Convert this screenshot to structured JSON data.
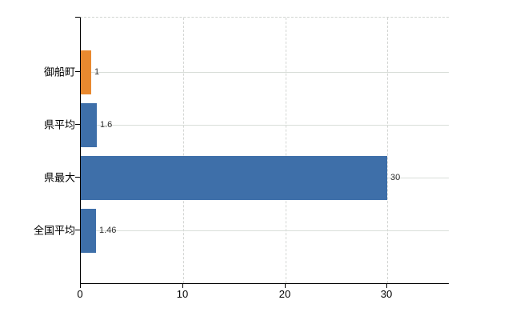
{
  "chart_data": {
    "type": "bar",
    "orientation": "horizontal",
    "title": "",
    "xlabel": "",
    "ylabel": "",
    "categories": [
      "御船町",
      "県平均",
      "県最大",
      "全国平均"
    ],
    "values": [
      1,
      1.6,
      30,
      1.46
    ],
    "data_labels": [
      "1",
      "1.6",
      "30",
      "1.46"
    ],
    "bar_colors": [
      "#e9892f",
      "#3e6fa9",
      "#3e6fa9",
      "#3e6fa9"
    ],
    "x_ticks": [
      0,
      10,
      20,
      30
    ],
    "x_tick_labels": [
      "0",
      "10",
      "20",
      "30"
    ],
    "xlim": [
      0,
      36
    ],
    "grid": true,
    "gridline_color_horizontal": "#d9ded9",
    "gridline_color_vertical": "#d4d6d4",
    "axis_color": "#000000",
    "background_color": "#ffffff",
    "accent_orange": "#e9892f",
    "accent_blue": "#3e6fa9",
    "legend": "none"
  }
}
